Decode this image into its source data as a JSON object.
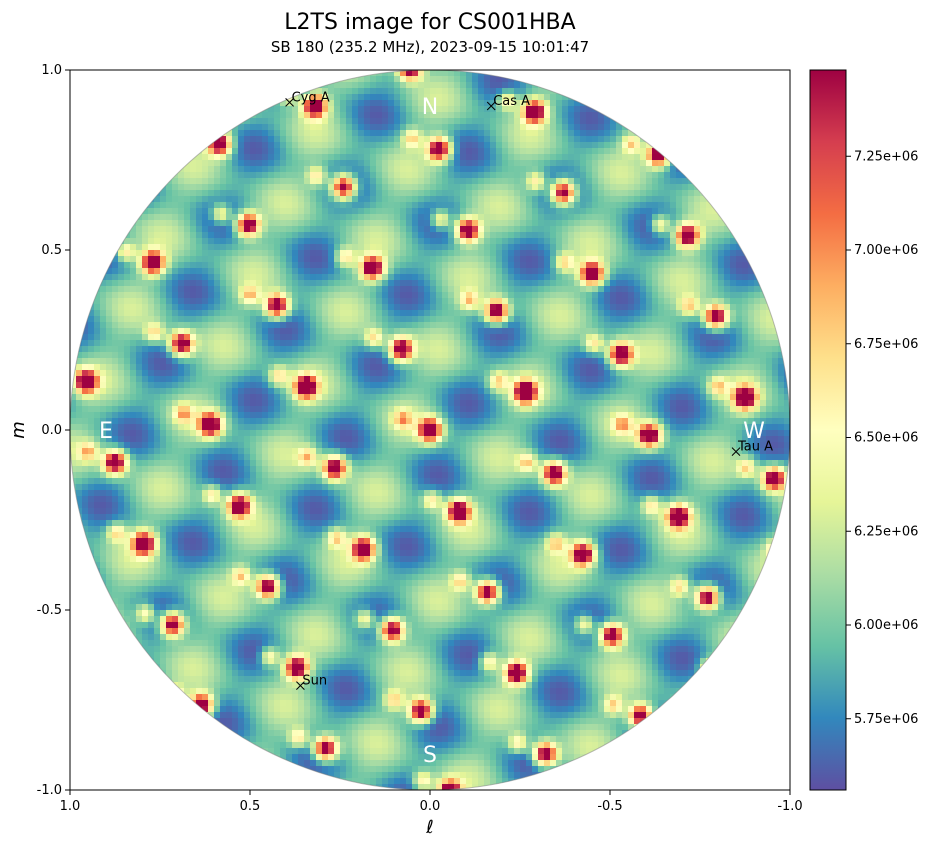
{
  "chart_data": {
    "type": "heatmap",
    "title": "L2TS image for CS001HBA",
    "subtitle": "SB 180 (235.2 MHz), 2023-09-15 10:01:47",
    "xlabel": "ℓ",
    "ylabel": "m",
    "xlim": [
      1.0,
      -1.0
    ],
    "ylim": [
      -1.0,
      1.0
    ],
    "x_ticks": [
      1.0,
      0.5,
      0.0,
      -0.5,
      -1.0
    ],
    "x_tick_labels": [
      "1.0",
      "0.5",
      "0.0",
      "-0.5",
      "-1.0"
    ],
    "y_ticks": [
      1.0,
      0.5,
      0.0,
      -0.5,
      -1.0
    ],
    "y_tick_labels": [
      "1.0",
      "0.5",
      "0.0",
      "-0.5",
      "-1.0"
    ],
    "colormap": "Spectral_r",
    "colorbar": {
      "min": 5560000,
      "max": 7480000,
      "ticks": [
        5750000,
        6000000,
        6250000,
        6500000,
        6750000,
        7000000,
        7250000
      ],
      "tick_labels": [
        "5.75e+06",
        "6.00e+06",
        "6.25e+06",
        "6.50e+06",
        "6.75e+06",
        "7.00e+06",
        "7.25e+06"
      ]
    },
    "compass": [
      {
        "label": "N",
        "l": 0.0,
        "m": 0.9
      },
      {
        "label": "S",
        "l": 0.0,
        "m": -0.9
      },
      {
        "label": "E",
        "l": 0.9,
        "m": 0.0
      },
      {
        "label": "W",
        "l": -0.9,
        "m": 0.0
      }
    ],
    "sources": [
      {
        "name": "Cyg A",
        "l": 0.39,
        "m": 0.91
      },
      {
        "name": "Cas A",
        "l": -0.17,
        "m": 0.9
      },
      {
        "name": "Tau A",
        "l": -0.85,
        "m": -0.06
      },
      {
        "name": "Sun",
        "l": 0.36,
        "m": -0.71
      }
    ],
    "grid": false,
    "field_of_view": "circle of radius 1"
  }
}
